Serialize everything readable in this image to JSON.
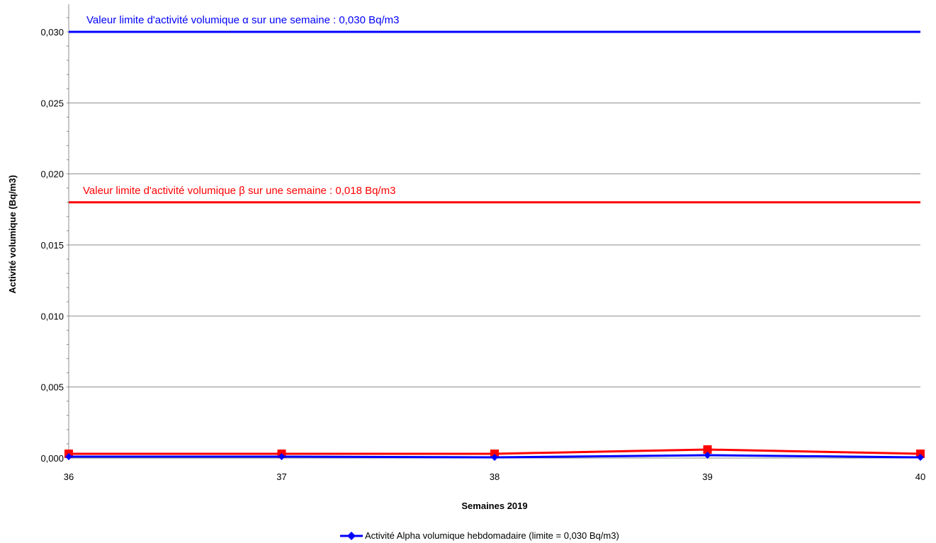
{
  "colors": {
    "alpha": "#0000ff",
    "beta": "#ff0000",
    "grid": "#8c8c8c",
    "axis": "#8c8c8c"
  },
  "chart_data": {
    "type": "line",
    "xlabel": "Semaines 2019",
    "ylabel": "Activité volumique (Bq/m3)",
    "x": [
      36,
      37,
      38,
      39,
      40
    ],
    "xlim": [
      36,
      40
    ],
    "ylim": [
      0,
      0.032
    ],
    "yticks": [
      0,
      0.005,
      0.01,
      0.015,
      0.02,
      0.025,
      0.03
    ],
    "ytick_labels": [
      "0,000",
      "0,005",
      "0,010",
      "0,015",
      "0,020",
      "0,025",
      "0,030"
    ],
    "xtick_labels": [
      "36",
      "37",
      "38",
      "39",
      "40"
    ],
    "grid": true,
    "series": [
      {
        "key": "alpha",
        "name": "Activité Alpha volumique hebdomadaire (limite = 0,030 Bq/m3)",
        "marker": "diamond",
        "values": [
          0.0001,
          0.0001,
          5e-05,
          0.0002,
          5e-05
        ]
      },
      {
        "key": "beta",
        "marker": "square",
        "values": [
          0.0003,
          0.0003,
          0.0003,
          0.0006,
          0.0003
        ]
      }
    ],
    "reference_lines": [
      {
        "key": "alpha",
        "value": 0.03,
        "label": "Valeur limite d'activité volumique α sur une semaine : 0,030 Bq/m3"
      },
      {
        "key": "beta",
        "value": 0.018,
        "label": "Valeur limite d'activité volumique β sur une semaine : 0,018 Bq/m3"
      }
    ],
    "legend": {
      "position": "bottom",
      "entries": [
        "Activité Alpha volumique hebdomadaire (limite = 0,030 Bq/m3)"
      ]
    }
  }
}
